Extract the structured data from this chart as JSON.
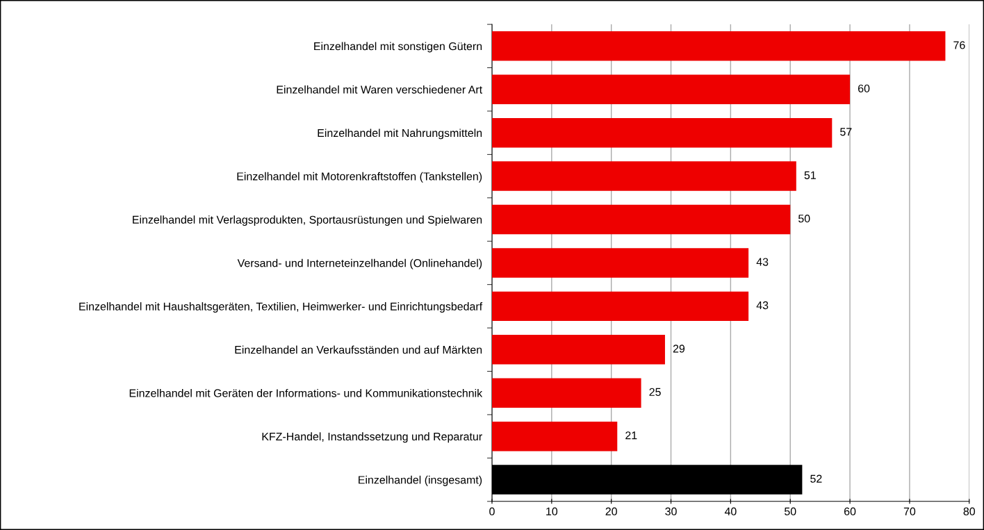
{
  "chart_data": {
    "type": "bar",
    "orientation": "horizontal",
    "categories": [
      "Einzelhandel mit sonstigen Gütern",
      "Einzelhandel mit Waren verschiedener Art",
      "Einzelhandel mit Nahrungsmitteln",
      "Einzelhandel mit Motorenkraftstoffen (Tankstellen)",
      "Einzelhandel mit Verlagsprodukten, Sportausrüstungen und Spielwaren",
      "Versand- und Interneteinzelhandel (Onlinehandel)",
      "Einzelhandel mit Haushaltsgeräten, Textilien, Heimwerker- und Einrichtungsbedarf",
      "Einzelhandel an Verkaufsständen und auf Märkten",
      "Einzelhandel mit Geräten der Informations- und Kommunikationstechnik",
      "KFZ-Handel, Instandssetzung und Reparatur",
      "Einzelhandel (insgesamt)"
    ],
    "values": [
      76,
      60,
      57,
      51,
      50,
      43,
      43,
      29,
      25,
      21,
      52
    ],
    "colors": [
      "#ee0000",
      "#ee0000",
      "#ee0000",
      "#ee0000",
      "#ee0000",
      "#ee0000",
      "#ee0000",
      "#ee0000",
      "#ee0000",
      "#ee0000",
      "#000000"
    ],
    "xlim": [
      0,
      80
    ],
    "xticks": [
      0,
      10,
      20,
      30,
      40,
      50,
      60,
      70,
      80
    ],
    "grid": "x",
    "data_labels": true
  }
}
